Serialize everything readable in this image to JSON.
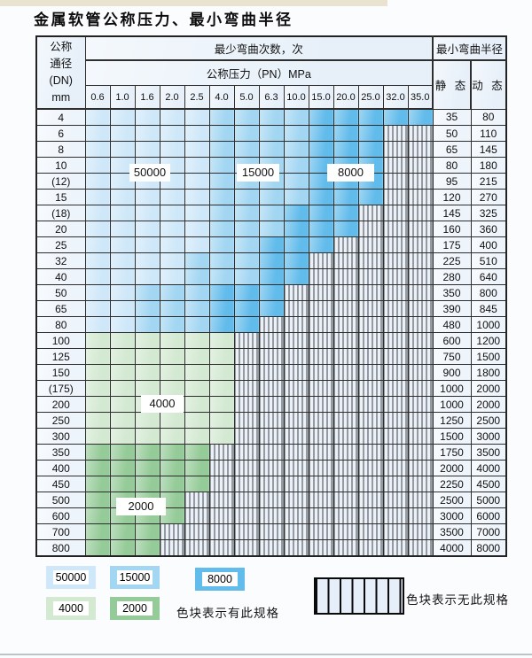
{
  "title": "金属软管公称压力、最小弯曲半径",
  "table": {
    "header": {
      "dn_lines": [
        "公称",
        "通径",
        "(DN)",
        "mm"
      ],
      "cycles_title": "最少弯曲次数，次",
      "pressure_title": "公称压力（PN）MPa",
      "radius_title": "最小弯曲半径",
      "static_label": "静 态",
      "dynamic_label": "动 态",
      "pressures": [
        "0.6",
        "1.0",
        "1.6",
        "2.0",
        "2.5",
        "4.0",
        "5.0",
        "6.3",
        "10.0",
        "15.0",
        "20.0",
        "25.0",
        "32.0",
        "35.0"
      ]
    },
    "rows": [
      {
        "dn": "4",
        "static": "35",
        "dynamic": "80",
        "last": 13,
        "band": "blue",
        "med": 5,
        "dark": 9
      },
      {
        "dn": "6",
        "static": "50",
        "dynamic": "110",
        "last": 11,
        "band": "blue",
        "med": 5,
        "dark": 9
      },
      {
        "dn": "8",
        "static": "65",
        "dynamic": "145",
        "last": 11,
        "band": "blue",
        "med": 5,
        "dark": 9
      },
      {
        "dn": "10",
        "static": "80",
        "dynamic": "180",
        "last": 11,
        "band": "blue",
        "med": 5,
        "dark": 9
      },
      {
        "dn": "(12)",
        "static": "95",
        "dynamic": "215",
        "last": 11,
        "band": "blue",
        "med": 5,
        "dark": 9
      },
      {
        "dn": "15",
        "static": "120",
        "dynamic": "270",
        "last": 11,
        "band": "blue",
        "med": 5,
        "dark": 9
      },
      {
        "dn": "(18)",
        "static": "145",
        "dynamic": "325",
        "last": 10,
        "band": "blue",
        "med": 5,
        "dark": 8
      },
      {
        "dn": "20",
        "static": "160",
        "dynamic": "360",
        "last": 10,
        "band": "blue",
        "med": 5,
        "dark": 8
      },
      {
        "dn": "25",
        "static": "175",
        "dynamic": "400",
        "last": 9,
        "band": "blue",
        "med": 5,
        "dark": 7
      },
      {
        "dn": "32",
        "static": "225",
        "dynamic": "510",
        "last": 8,
        "band": "blue",
        "med": 4,
        "dark": 7
      },
      {
        "dn": "40",
        "static": "280",
        "dynamic": "640",
        "last": 8,
        "band": "blue",
        "med": 4,
        "dark": 7
      },
      {
        "dn": "50",
        "static": "350",
        "dynamic": "800",
        "last": 7,
        "band": "blue",
        "med": 2,
        "dark": 5
      },
      {
        "dn": "65",
        "static": "390",
        "dynamic": "845",
        "last": 7,
        "band": "blue",
        "med": 2,
        "dark": 5
      },
      {
        "dn": "80",
        "static": "480",
        "dynamic": "1000",
        "last": 6,
        "band": "blue",
        "med": 2,
        "dark": 5
      },
      {
        "dn": "100",
        "static": "600",
        "dynamic": "1200",
        "last": 5,
        "band": "4000"
      },
      {
        "dn": "125",
        "static": "750",
        "dynamic": "1500",
        "last": 5,
        "band": "4000"
      },
      {
        "dn": "150",
        "static": "900",
        "dynamic": "1800",
        "last": 5,
        "band": "4000"
      },
      {
        "dn": "(175)",
        "static": "1000",
        "dynamic": "2000",
        "last": 5,
        "band": "4000"
      },
      {
        "dn": "200",
        "static": "1000",
        "dynamic": "2000",
        "last": 5,
        "band": "4000"
      },
      {
        "dn": "250",
        "static": "1250",
        "dynamic": "2500",
        "last": 5,
        "band": "4000"
      },
      {
        "dn": "300",
        "static": "1500",
        "dynamic": "3000",
        "last": 5,
        "band": "4000"
      },
      {
        "dn": "350",
        "static": "1750",
        "dynamic": "3500",
        "last": 4,
        "band": "2000"
      },
      {
        "dn": "400",
        "static": "2000",
        "dynamic": "4000",
        "last": 4,
        "band": "2000"
      },
      {
        "dn": "450",
        "static": "2250",
        "dynamic": "4500",
        "last": 4,
        "band": "2000"
      },
      {
        "dn": "500",
        "static": "2500",
        "dynamic": "5000",
        "last": 3,
        "band": "2000"
      },
      {
        "dn": "600",
        "static": "3000",
        "dynamic": "6000",
        "last": 3,
        "band": "2000"
      },
      {
        "dn": "700",
        "static": "3500",
        "dynamic": "7000",
        "last": 2,
        "band": "2000"
      },
      {
        "dn": "800",
        "static": "4000",
        "dynamic": "8000",
        "last": 2,
        "band": "2000"
      }
    ]
  },
  "region_labels": [
    {
      "text": "50000"
    },
    {
      "text": "15000"
    },
    {
      "text": "8000"
    },
    {
      "text": "4000"
    },
    {
      "text": "2000"
    }
  ],
  "legend": {
    "has_spec": [
      {
        "cycles": "50000"
      },
      {
        "cycles": "15000"
      },
      {
        "cycles": "8000"
      },
      {
        "cycles": "4000"
      },
      {
        "cycles": "2000"
      }
    ],
    "has_spec_note": "色块表示有此规格",
    "no_spec_note": "色块表示无此规格"
  },
  "colors": {
    "cycles_50000": "#cfe8f9",
    "cycles_15000": "#a2d6f2",
    "cycles_8000": "#62bceb",
    "cycles_4000": "#d3e9d1",
    "cycles_2000": "#95cb98",
    "hatch_bg": "#ecf1f8",
    "grid": "#2e2e2e"
  }
}
